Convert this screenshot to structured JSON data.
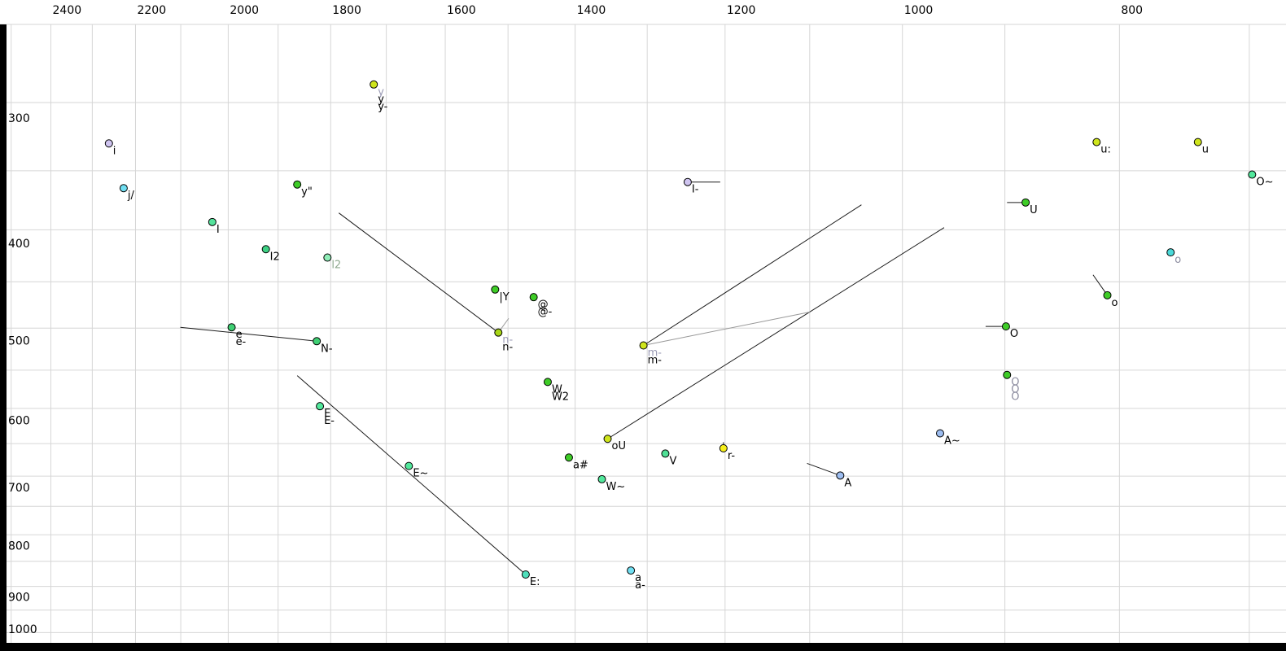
{
  "chart_data": {
    "type": "scatter",
    "title": "",
    "x_axis": {
      "scale": "log",
      "reversed": true,
      "unit": "Hz",
      "tick_labels": [
        "2400",
        "2200",
        "2000",
        "1800",
        "1600",
        "1400",
        "1200",
        "1000",
        "800"
      ],
      "tick_values": [
        2400,
        2200,
        2000,
        1800,
        1600,
        1400,
        1200,
        1000,
        800
      ],
      "minor_grid_step": 100,
      "range": [
        2500,
        660
      ]
    },
    "y_axis": {
      "scale": "log",
      "increases_downward": true,
      "unit": "Hz",
      "tick_labels": [
        "300",
        "400",
        "500",
        "600",
        "700",
        "800",
        "900",
        "1000"
      ],
      "tick_values": [
        300,
        400,
        500,
        600,
        700,
        800,
        900,
        1000
      ],
      "minor_grid_step": 50,
      "range": [
        245,
        1010
      ]
    },
    "grid": true,
    "points": [
      {
        "labels": [
          {
            "text": "i",
            "color": "#000000"
          }
        ],
        "f2": 2261,
        "f1": 324,
        "fill": "#cfc4f0"
      },
      {
        "labels": [
          {
            "text": "j/",
            "color": "#000000"
          }
        ],
        "f2": 2227,
        "f1": 359,
        "fill": "#70dff2"
      },
      {
        "labels": [
          {
            "text": "I",
            "color": "#000000"
          }
        ],
        "f2": 2033,
        "f1": 388,
        "fill": "#55e39c"
      },
      {
        "labels": [
          {
            "text": "I2",
            "color": "#000000"
          }
        ],
        "f2": 1924,
        "f1": 413,
        "fill": "#3ed184"
      },
      {
        "labels": [
          {
            "text": "l2",
            "color": "#8fa98f"
          }
        ],
        "f2": 1806,
        "f1": 421,
        "fill": "#90eeb8"
      },
      {
        "labels": [
          {
            "text": "y\"",
            "color": "#000000"
          }
        ],
        "f2": 1863,
        "f1": 356,
        "fill": "#3ecc27"
      },
      {
        "labels": [
          {
            "text": "y",
            "color": "#9a9ab4"
          },
          {
            "text": "y",
            "color": "#000000"
          },
          {
            "text": "y-",
            "color": "#000000"
          }
        ],
        "f2": 1722,
        "f1": 283,
        "fill": "#cfe51c"
      },
      {
        "labels": [
          {
            "text": "|Y",
            "color": "#000000"
          }
        ],
        "f2": 1520,
        "f1": 453,
        "fill": "#3ecc27"
      },
      {
        "labels": [
          {
            "text": "@",
            "color": "#000000"
          },
          {
            "text": "@-",
            "color": "#000000"
          }
        ],
        "f2": 1461,
        "f1": 461,
        "fill": "#3ecc27"
      },
      {
        "labels": [
          {
            "text": "n-",
            "color": "#9a9ab4"
          },
          {
            "text": "n-",
            "color": "#000000"
          }
        ],
        "f2": 1515,
        "f1": 500,
        "fill": "#a8d616"
      },
      {
        "labels": [
          {
            "text": "e",
            "color": "#000000"
          },
          {
            "text": "e-",
            "color": "#000000"
          }
        ],
        "f2": 1993,
        "f1": 494,
        "fill": "#3fcf73"
      },
      {
        "labels": [
          {
            "text": "N-",
            "color": "#000000"
          }
        ],
        "f2": 1826,
        "f1": 510,
        "fill": "#3fcf73"
      },
      {
        "labels": [
          {
            "text": "E",
            "color": "#000000"
          },
          {
            "text": "E-",
            "color": "#000000"
          }
        ],
        "f2": 1820,
        "f1": 592,
        "fill": "#52e89c"
      },
      {
        "labels": [
          {
            "text": "E~",
            "color": "#000000"
          }
        ],
        "f2": 1661,
        "f1": 679,
        "fill": "#52e89c"
      },
      {
        "labels": [
          {
            "text": "E:",
            "color": "#000000"
          }
        ],
        "f2": 1473,
        "f1": 871,
        "fill": "#4fdfbb"
      },
      {
        "labels": [
          {
            "text": "W",
            "color": "#000000"
          },
          {
            "text": "W2",
            "color": "#000000"
          }
        ],
        "f2": 1440,
        "f1": 560,
        "fill": "#3ecc27"
      },
      {
        "labels": [
          {
            "text": "a#",
            "color": "#000000"
          }
        ],
        "f2": 1409,
        "f1": 666,
        "fill": "#3ecc27"
      },
      {
        "labels": [
          {
            "text": "oU",
            "color": "#000000"
          }
        ],
        "f2": 1354,
        "f1": 638,
        "fill": "#cfe51c"
      },
      {
        "labels": [
          {
            "text": "V",
            "color": "#000000"
          }
        ],
        "f2": 1276,
        "f1": 660,
        "fill": "#4fe096"
      },
      {
        "labels": [
          {
            "text": "W~",
            "color": "#000000"
          }
        ],
        "f2": 1362,
        "f1": 700,
        "fill": "#52e89c"
      },
      {
        "labels": [
          {
            "text": "r-",
            "color": "#000000"
          }
        ],
        "f2": 1202,
        "f1": 652,
        "fill": "#f6ef1a"
      },
      {
        "labels": [
          {
            "text": "a",
            "color": "#000000"
          },
          {
            "text": "a-",
            "color": "#000000"
          }
        ],
        "f2": 1322,
        "f1": 863,
        "fill": "#70dff2"
      },
      {
        "labels": [
          {
            "text": "m-",
            "color": "#9a9ab4"
          },
          {
            "text": "m-",
            "color": "#000000"
          }
        ],
        "f2": 1305,
        "f1": 515,
        "fill": "#cfe51c"
      },
      {
        "labels": [
          {
            "text": "I-",
            "color": "#000000"
          }
        ],
        "f2": 1247,
        "f1": 354,
        "fill": "#cfc4f0"
      },
      {
        "labels": [
          {
            "text": "A",
            "color": "#000000"
          }
        ],
        "f2": 1066,
        "f1": 694,
        "fill": "#9dbdf0"
      },
      {
        "labels": [
          {
            "text": "A~",
            "color": "#000000"
          }
        ],
        "f2": 962,
        "f1": 630,
        "fill": "#9dbdf0"
      },
      {
        "labels": [
          {
            "text": "U",
            "color": "#000000"
          }
        ],
        "f2": 881,
        "f1": 371,
        "fill": "#3ecc27"
      },
      {
        "labels": [
          {
            "text": "O",
            "color": "#000000"
          }
        ],
        "f2": 899,
        "f1": 493,
        "fill": "#3ecc27"
      },
      {
        "labels": [
          {
            "text": "O",
            "color": "#8d8da0"
          },
          {
            "text": "O",
            "color": "#8d8da0"
          },
          {
            "text": "O",
            "color": "#8d8da0"
          }
        ],
        "f2": 898,
        "f1": 551,
        "fill": "#3ecc27"
      },
      {
        "labels": [
          {
            "text": "u:",
            "color": "#000000"
          }
        ],
        "f2": 819,
        "f1": 323,
        "fill": "#cfe51c"
      },
      {
        "labels": [
          {
            "text": "u",
            "color": "#000000"
          }
        ],
        "f2": 738,
        "f1": 323,
        "fill": "#cfe51c"
      },
      {
        "labels": [
          {
            "text": "o",
            "color": "#8d8da0"
          }
        ],
        "f2": 759,
        "f1": 416,
        "fill": "#4ad9d9"
      },
      {
        "labels": [
          {
            "text": "o",
            "color": "#000000"
          }
        ],
        "f2": 810,
        "f1": 459,
        "fill": "#3ecc27"
      },
      {
        "labels": [
          {
            "text": "O~",
            "color": "#000000"
          }
        ],
        "f2": 698,
        "f1": 348,
        "fill": "#52e89c"
      }
    ],
    "segments": [
      {
        "from": [
          1785,
          380
        ],
        "to": [
          1515,
          500
        ],
        "color": "#1a1a1a"
      },
      {
        "from": [
          2101,
          494
        ],
        "to": [
          1826,
          510
        ],
        "color": "#1a1a1a"
      },
      {
        "from": [
          1863,
          552
        ],
        "to": [
          1473,
          871
        ],
        "color": "#1a1a1a"
      },
      {
        "from": [
          1305,
          515
        ],
        "to": [
          1043,
          373
        ],
        "color": "#1a1a1a"
      },
      {
        "from": [
          1354,
          638
        ],
        "to": [
          958,
          393
        ],
        "color": "#1a1a1a"
      },
      {
        "from": [
          1305,
          515
        ],
        "to": [
          1100,
          477
        ],
        "color": "#999999"
      },
      {
        "from": [
          1515,
          500
        ],
        "to": [
          1499,
          484
        ],
        "color": "#999999"
      },
      {
        "from": [
          1247,
          354
        ],
        "to": [
          1206,
          354
        ],
        "color": "#1a1a1a"
      },
      {
        "from": [
          881,
          371
        ],
        "to": [
          898,
          371
        ],
        "color": "#1a1a1a"
      },
      {
        "from": [
          899,
          493
        ],
        "to": [
          918,
          493
        ],
        "color": "#1a1a1a"
      },
      {
        "from": [
          810,
          459
        ],
        "to": [
          822,
          438
        ],
        "color": "#1a1a1a"
      },
      {
        "from": [
          1066,
          694
        ],
        "to": [
          1103,
          675
        ],
        "color": "#1a1a1a"
      },
      {
        "from": [
          1202,
          643
        ],
        "to": [
          1202,
          656
        ],
        "color": "#1a1a1a"
      }
    ],
    "style": {
      "gridline_color": "#d6d6d6",
      "background": "#ffffff",
      "point_stroke": "#000000",
      "border_bar_color": "#000000",
      "tick_text_color": "#000000"
    }
  }
}
